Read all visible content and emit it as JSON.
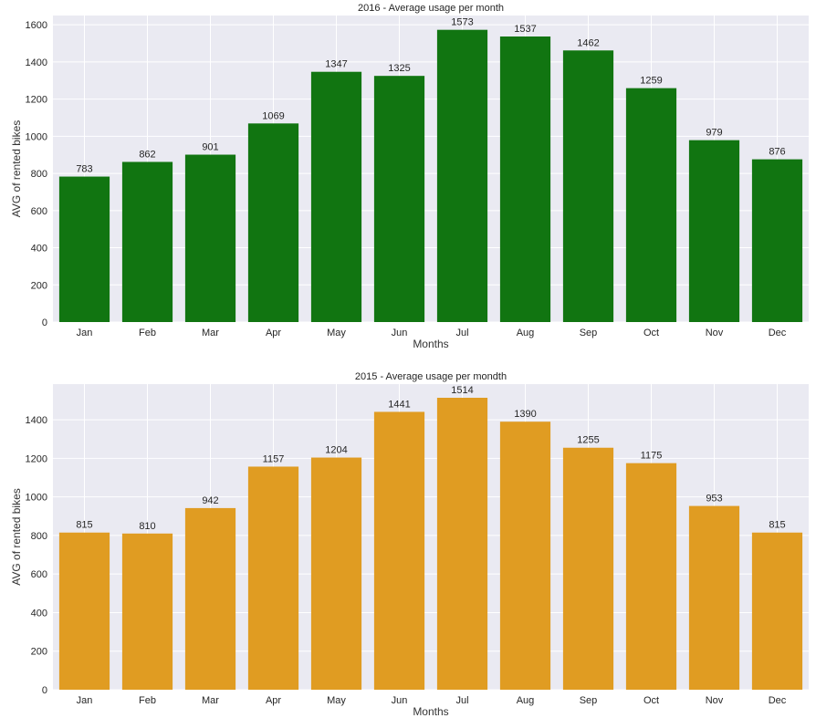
{
  "chart_data": [
    {
      "type": "bar",
      "title": "2016 - Average usage per month",
      "xlabel": "Months",
      "ylabel": "AVG of rented bikes",
      "categories": [
        "Jan",
        "Feb",
        "Mar",
        "Apr",
        "May",
        "Jun",
        "Jul",
        "Aug",
        "Sep",
        "Oct",
        "Nov",
        "Dec"
      ],
      "values": [
        783,
        862,
        901,
        1069,
        1347,
        1325,
        1573,
        1537,
        1462,
        1259,
        979,
        876
      ],
      "yticks": [
        0,
        200,
        400,
        600,
        800,
        1000,
        1200,
        1400,
        1600
      ],
      "ylim": [
        0,
        1650
      ],
      "bar_color": "#117511",
      "grid": true
    },
    {
      "type": "bar",
      "title": "2015 - Average usage per mondth",
      "xlabel": "Months",
      "ylabel": "AVG of rented bikes",
      "categories": [
        "Jan",
        "Feb",
        "Mar",
        "Apr",
        "May",
        "Jun",
        "Jul",
        "Aug",
        "Sep",
        "Oct",
        "Nov",
        "Dec"
      ],
      "values": [
        815,
        810,
        942,
        1157,
        1204,
        1441,
        1514,
        1390,
        1255,
        1175,
        953,
        815
      ],
      "yticks": [
        0,
        200,
        400,
        600,
        800,
        1000,
        1200,
        1400
      ],
      "ylim": [
        0,
        1585
      ],
      "bar_color": "#e09c22",
      "grid": true
    }
  ],
  "style": {
    "plot_background": "#eaeaf2",
    "grid_color": "#ffffff",
    "text_color": "#262626",
    "label_color": "#333333"
  }
}
